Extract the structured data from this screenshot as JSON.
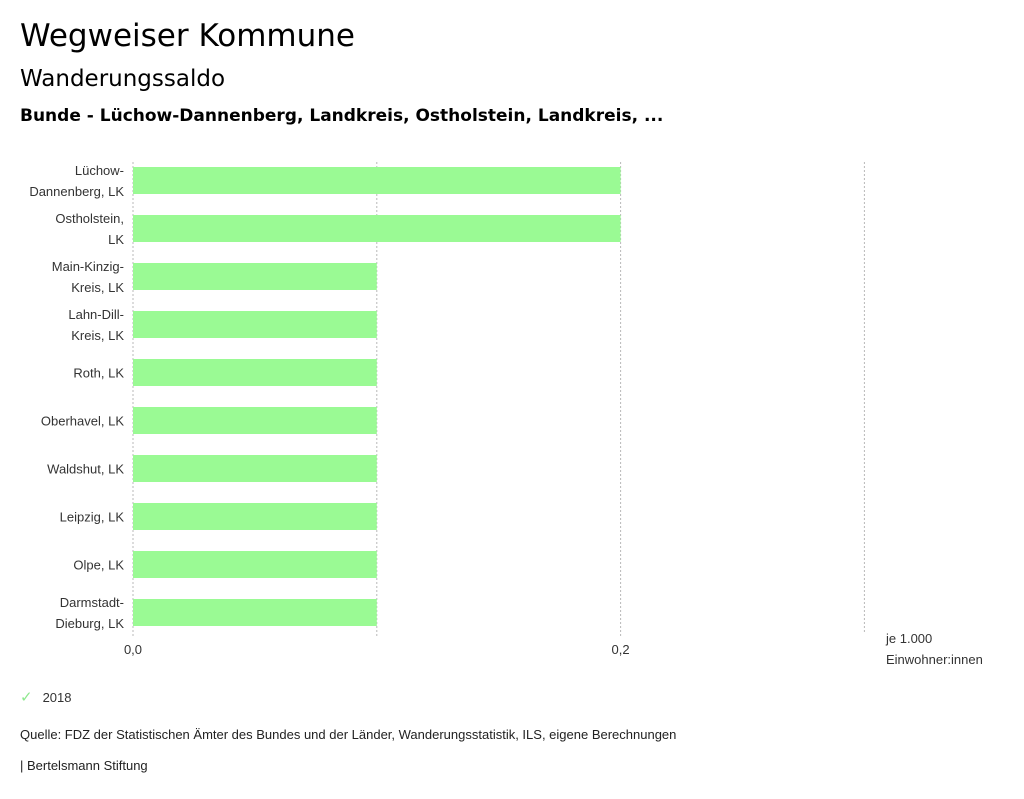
{
  "header": {
    "title": "Wegweiser Kommune",
    "subtitle": "Wanderungssaldo",
    "filter": "Bunde - Lüchow-Dannenberg, Landkreis, Ostholstein, Landkreis, ..."
  },
  "chart_data": {
    "type": "bar",
    "orientation": "horizontal",
    "categories": [
      [
        "Lüchow-",
        "Dannenberg, LK"
      ],
      [
        "Ostholstein,",
        "LK"
      ],
      [
        "Main-Kinzig-",
        "Kreis, LK"
      ],
      [
        "Lahn-Dill-",
        "Kreis, LK"
      ],
      [
        "Roth, LK"
      ],
      [
        "Oberhavel, LK"
      ],
      [
        "Waldshut, LK"
      ],
      [
        "Leipzig, LK"
      ],
      [
        "Olpe, LK"
      ],
      [
        "Darmstadt-",
        "Dieburg, LK"
      ]
    ],
    "series": [
      {
        "name": "2018",
        "color": "#9afa94",
        "values": [
          0.2,
          0.2,
          0.1,
          0.1,
          0.1,
          0.1,
          0.1,
          0.1,
          0.1,
          0.1
        ]
      }
    ],
    "xlim": [
      0,
      0.3
    ],
    "xticks": [
      0,
      0.1,
      0.2,
      0.3
    ],
    "xtick_labels": [
      "0,0",
      "",
      "0,2",
      ""
    ],
    "unit_label": [
      "je 1.000",
      "Einwohner:innen"
    ],
    "grid": true
  },
  "legend": {
    "label": "2018",
    "icon": "check-icon"
  },
  "footer": {
    "source": "Quelle: FDZ der Statistischen Ämter des Bundes und der Länder, Wanderungsstatistik, ILS, eigene Berechnungen",
    "brand": "| Bertelsmann Stiftung"
  }
}
